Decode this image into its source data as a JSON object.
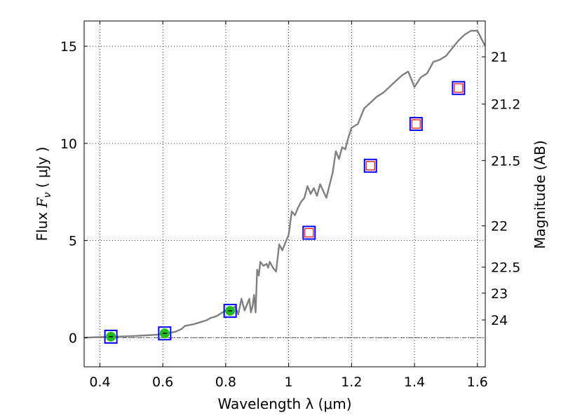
{
  "chart_data": {
    "type": "line",
    "title": "",
    "xlabel": "Wavelength  λ (μm)",
    "ylabel_left_prefix": "Flux  ",
    "ylabel_left_var": "F",
    "ylabel_left_sub": "ν",
    "ylabel_left_suffix": "  ( μJy )",
    "ylabel_right": "Magnitude (AB)",
    "xlim": [
      0.35,
      1.625
    ],
    "ylim": [
      -1.5,
      16.3
    ],
    "grid": true,
    "x_ticks": [
      0.4,
      0.6,
      0.8,
      1.0,
      1.2,
      1.4,
      1.6
    ],
    "x_tick_labels": [
      "0.4",
      "0.6",
      "0.8",
      "1",
      "1.2",
      "1.4",
      "1.6"
    ],
    "y_ticks": [
      0,
      5,
      10,
      15
    ],
    "y_tick_labels": [
      "0",
      "5",
      "10",
      "15"
    ],
    "right_axis_ticks": [
      {
        "mag": 21,
        "label": "21"
      },
      {
        "mag": 21.2,
        "label": "21.2"
      },
      {
        "mag": 21.5,
        "label": "21.5"
      },
      {
        "mag": 22,
        "label": "22"
      },
      {
        "mag": 22.5,
        "label": "22.5"
      },
      {
        "mag": 23,
        "label": "23"
      },
      {
        "mag": 24,
        "label": "24"
      }
    ],
    "zero_line": 0,
    "series": [
      {
        "name": "model spectrum",
        "style": "line",
        "color": "#808080",
        "x": [
          0.35,
          0.4,
          0.45,
          0.5,
          0.55,
          0.58,
          0.6,
          0.62,
          0.64,
          0.66,
          0.67,
          0.7,
          0.72,
          0.74,
          0.75,
          0.77,
          0.78,
          0.79,
          0.8,
          0.81,
          0.82,
          0.83,
          0.84,
          0.85,
          0.86,
          0.87,
          0.875,
          0.88,
          0.885,
          0.89,
          0.895,
          0.9,
          0.905,
          0.91,
          0.92,
          0.93,
          0.935,
          0.94,
          0.95,
          0.96,
          0.97,
          0.98,
          0.99,
          1.0,
          1.01,
          1.02,
          1.03,
          1.04,
          1.05,
          1.06,
          1.07,
          1.08,
          1.09,
          1.1,
          1.12,
          1.14,
          1.15,
          1.16,
          1.17,
          1.18,
          1.19,
          1.2,
          1.22,
          1.24,
          1.26,
          1.28,
          1.3,
          1.32,
          1.34,
          1.36,
          1.38,
          1.4,
          1.42,
          1.44,
          1.46,
          1.48,
          1.5,
          1.52,
          1.54,
          1.56,
          1.58,
          1.6,
          1.625
        ],
        "y": [
          0.0,
          0.03,
          0.05,
          0.08,
          0.12,
          0.15,
          0.2,
          0.25,
          0.3,
          0.45,
          0.6,
          0.7,
          0.8,
          0.9,
          1.0,
          1.1,
          1.2,
          1.3,
          1.4,
          1.3,
          1.5,
          1.6,
          1.2,
          2.0,
          1.4,
          1.8,
          2.0,
          1.3,
          1.6,
          2.2,
          1.3,
          3.5,
          3.2,
          3.9,
          3.7,
          3.8,
          3.6,
          3.9,
          3.6,
          3.4,
          4.8,
          4.5,
          4.9,
          5.3,
          6.5,
          6.3,
          6.7,
          7.0,
          7.2,
          7.8,
          7.4,
          7.7,
          7.3,
          7.9,
          7.2,
          8.5,
          9.6,
          9.2,
          9.8,
          9.7,
          10.3,
          10.8,
          11.0,
          11.8,
          12.1,
          12.4,
          12.6,
          12.9,
          13.2,
          13.5,
          13.7,
          12.9,
          13.4,
          13.6,
          14.2,
          14.3,
          14.5,
          14.9,
          15.3,
          15.6,
          15.8,
          15.8,
          15.0
        ]
      },
      {
        "name": "photometry",
        "style": "markers",
        "points": [
          {
            "x": 0.435,
            "y": 0.05,
            "detected": true
          },
          {
            "x": 0.606,
            "y": 0.22,
            "detected": true
          },
          {
            "x": 0.814,
            "y": 1.38,
            "detected": true
          },
          {
            "x": 1.065,
            "y": 5.4,
            "detected": false
          },
          {
            "x": 1.26,
            "y": 8.85,
            "detected": false
          },
          {
            "x": 1.405,
            "y": 11.0,
            "detected": false
          },
          {
            "x": 1.54,
            "y": 12.85,
            "detected": false
          }
        ]
      }
    ],
    "colors": {
      "spectrum": "#808080",
      "box_outer": "#0000ff",
      "box_inner": "#ff0000",
      "detected_fill": "#22bb22",
      "grid": "#000000",
      "zero_line": "#555555"
    }
  }
}
